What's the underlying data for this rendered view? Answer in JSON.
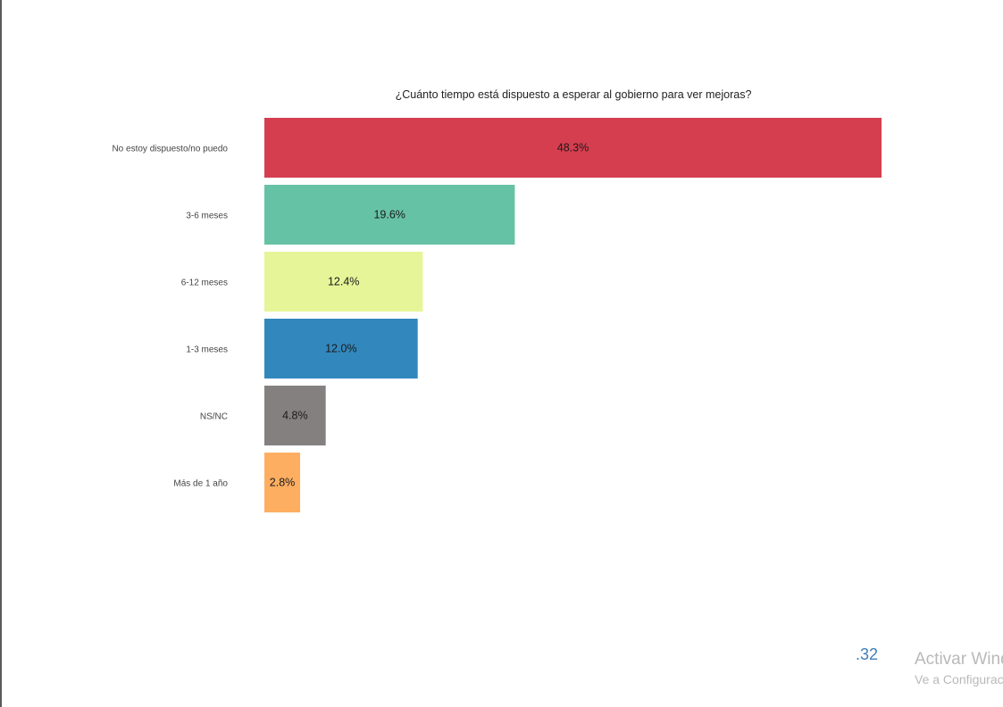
{
  "chart_data": {
    "type": "bar",
    "orientation": "horizontal",
    "title": "¿Cuánto tiempo está dispuesto a esperar al gobierno para ver mejoras?",
    "categories": [
      "No estoy dispuesto/no puedo",
      "3-6 meses",
      "6-12 meses",
      "1-3 meses",
      "NS/NC",
      "Más de 1 año"
    ],
    "values": [
      48.3,
      19.6,
      12.4,
      12.0,
      4.8,
      2.8
    ],
    "data_labels": [
      "48.3%",
      "19.6%",
      "12.4%",
      "12.0%",
      "4.8%",
      "2.8%"
    ],
    "colors": [
      "#d53e4f",
      "#66c2a5",
      "#e6f598",
      "#3288bd",
      "#858080",
      "#fdae61"
    ],
    "xlim": [
      0,
      48.3
    ],
    "grid": false,
    "legend": "none"
  },
  "footer": {
    "page_number": ".32",
    "watermark_line1": "Activar Windows",
    "watermark_line2": "Ve a Configuración para activar Windows."
  }
}
